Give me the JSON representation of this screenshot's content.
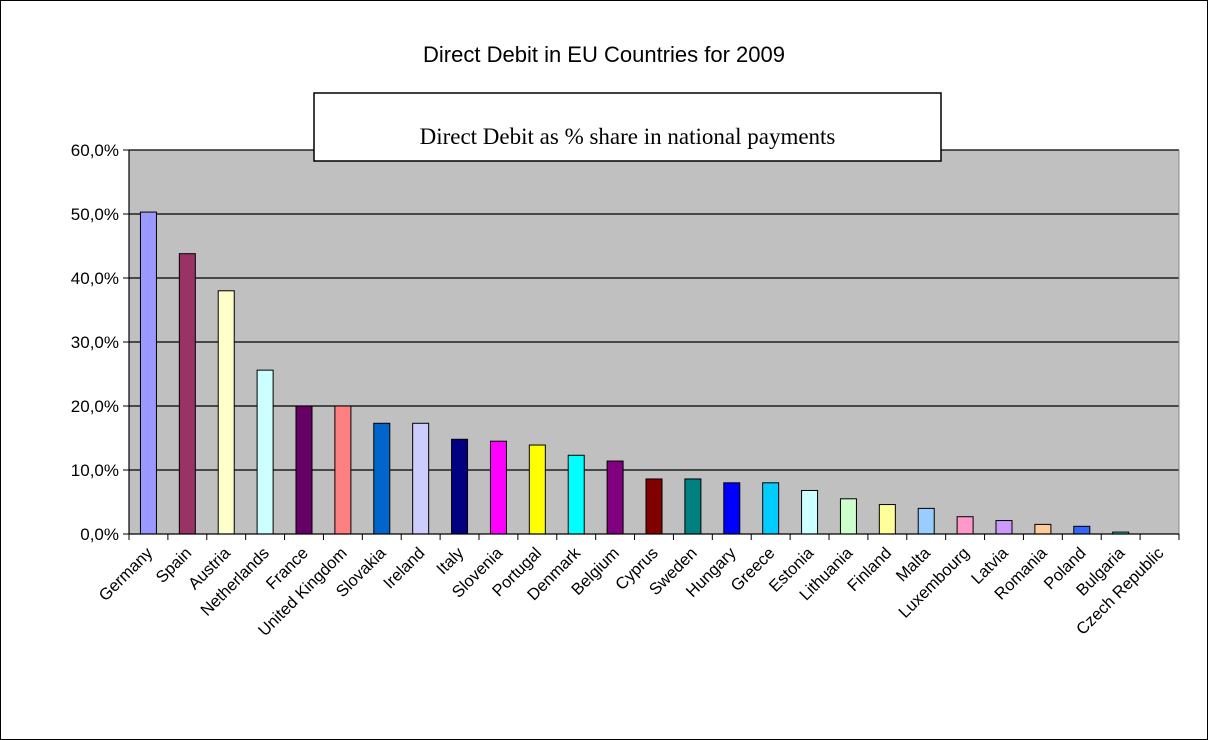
{
  "chart_data": {
    "type": "bar",
    "title": "Direct Debit in EU Countries for 2009",
    "annotation": "Direct Debit as % share in national payments",
    "xlabel": "",
    "ylabel": "",
    "ylim": [
      0,
      60
    ],
    "yticks": [
      "0,0%",
      "10,0%",
      "20,0%",
      "30,0%",
      "40,0%",
      "50,0%",
      "60,0%"
    ],
    "grid": true,
    "legend": "none",
    "plot_background": "#c0c0c0",
    "categories": [
      "Germany",
      "Spain",
      "Austria",
      "Netherlands",
      "France",
      "United Kingdom",
      "Slovakia",
      "Ireland",
      "Italy",
      "Slovenia",
      "Portugal",
      "Denmark",
      "Belgium",
      "Cyprus",
      "Sweden",
      "Hungary",
      "Greece",
      "Estonia",
      "Lithuania",
      "Finland",
      "Malta",
      "Luxembourg",
      "Latvia",
      "Romania",
      "Poland",
      "Bulgaria",
      "Czech Republic"
    ],
    "values": [
      50.3,
      43.8,
      38.0,
      25.6,
      20.0,
      20.0,
      17.3,
      17.3,
      14.8,
      14.5,
      13.9,
      12.3,
      11.4,
      8.6,
      8.6,
      8.0,
      8.0,
      6.8,
      5.5,
      4.6,
      4.0,
      2.7,
      2.1,
      1.5,
      1.2,
      0.3,
      0.0
    ],
    "colors": [
      "#9999ff",
      "#993366",
      "#ffffcc",
      "#ccffff",
      "#660066",
      "#ff8080",
      "#0066cc",
      "#ccccff",
      "#000080",
      "#ff00ff",
      "#ffff00",
      "#00ffff",
      "#800080",
      "#800000",
      "#008080",
      "#0000ff",
      "#00ccff",
      "#ccffff",
      "#ccffcc",
      "#ffff99",
      "#99ccff",
      "#ff99cc",
      "#cc99ff",
      "#ffcc99",
      "#3366ff",
      "#33cccc",
      "#99cc00"
    ]
  }
}
